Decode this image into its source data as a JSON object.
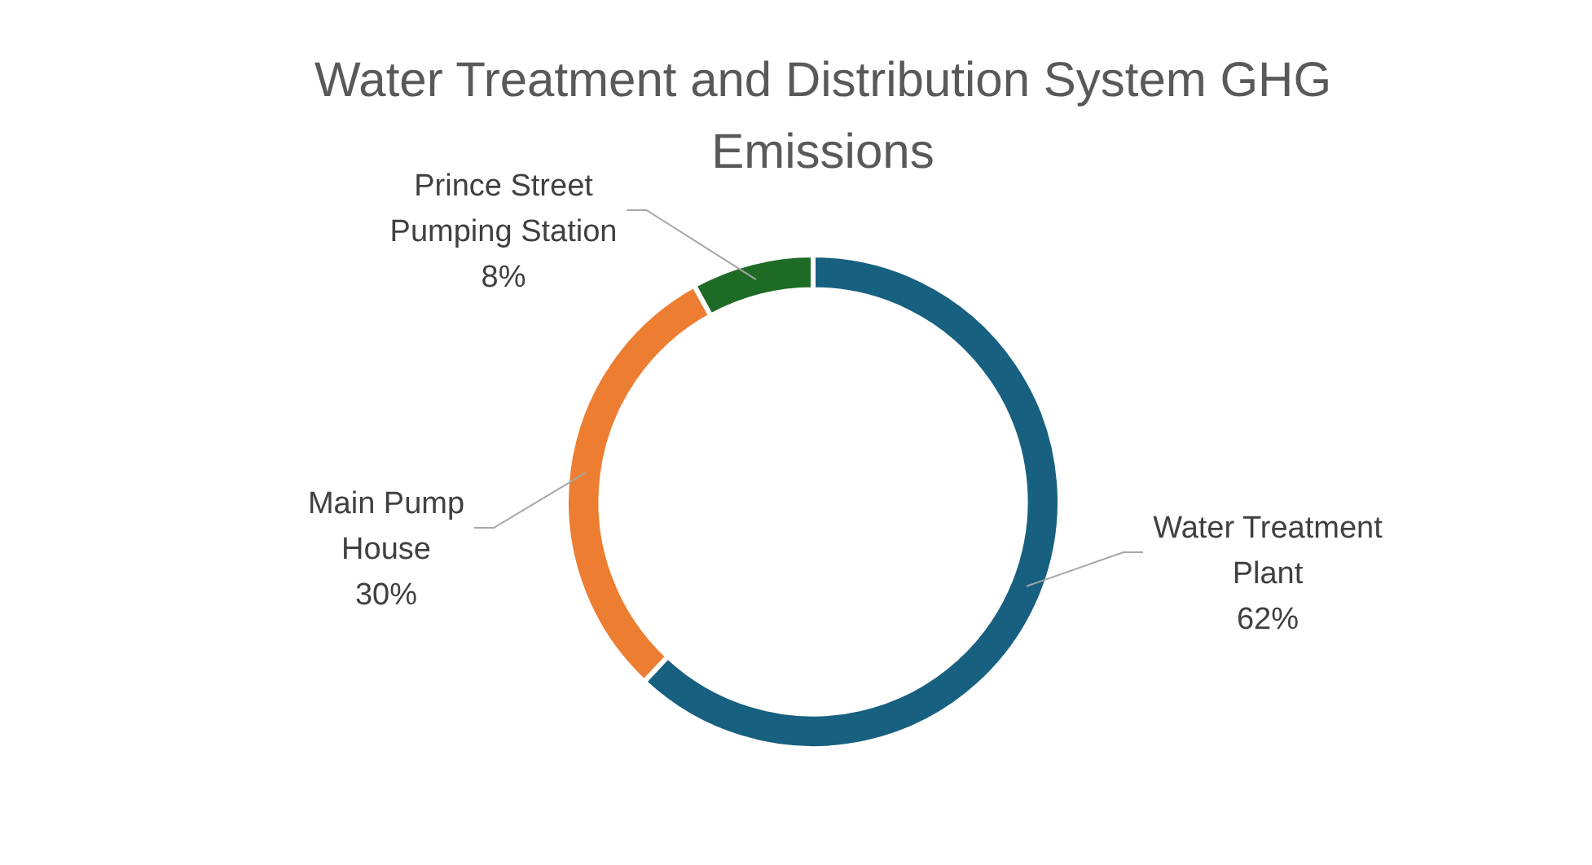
{
  "chart_data": {
    "type": "donut",
    "title": "Water Treatment and Distribution System GHG Emissions",
    "categories": [
      "Water Treatment Plant",
      "Main Pump House",
      "Prince Street Pumping Station"
    ],
    "values": [
      62,
      30,
      8
    ],
    "colors": [
      "#17607f",
      "#ed7d31",
      "#1e6b25"
    ],
    "value_labels": [
      "62%",
      "30%",
      "8%"
    ],
    "legend": false
  }
}
